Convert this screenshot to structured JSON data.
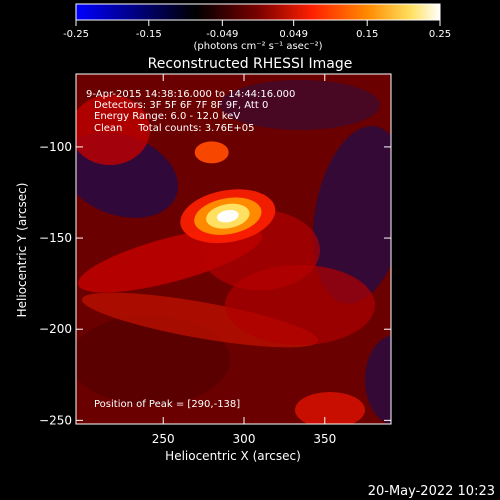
{
  "chart_data": {
    "type": "heatmap",
    "title": "Reconstructed RHESSI Image",
    "colorbar": {
      "ticks": [
        "-0.25",
        "-0.15",
        "-0.049",
        "0.049",
        "0.15",
        "0.25"
      ],
      "range": [
        -0.25,
        0.25
      ],
      "units": "(photons cm⁻² s⁻¹ asec⁻²)",
      "colors": [
        "#0000ff",
        "#000000",
        "#7a0000",
        "#ff2000",
        "#ff8a00",
        "#ffe060",
        "#ffffff"
      ]
    },
    "xaxis": {
      "label": "Heliocentric X (arcsec)",
      "range": [
        196,
        391
      ],
      "ticks": [
        250,
        300,
        350
      ]
    },
    "yaxis": {
      "label": "Heliocentric Y (arcsec)",
      "range": [
        -252,
        -60
      ],
      "ticks": [
        -100,
        -150,
        -200,
        -250
      ]
    },
    "peak": {
      "x": 290,
      "y": -138,
      "value": 0.25
    },
    "secondary_source": {
      "x": 280,
      "y": -103
    },
    "annotations": [
      "9-Apr-2015 14:38:16.000 to 14:44:16.000",
      "Detectors: 3F 5F 6F 7F 8F 9F, Att 0",
      "Energy Range: 6.0 - 12.0 keV",
      "Clean     Total counts: 3.76E+05",
      "Position of Peak = [290,-138]"
    ],
    "timestamp": "20-May-2022 10:23"
  }
}
